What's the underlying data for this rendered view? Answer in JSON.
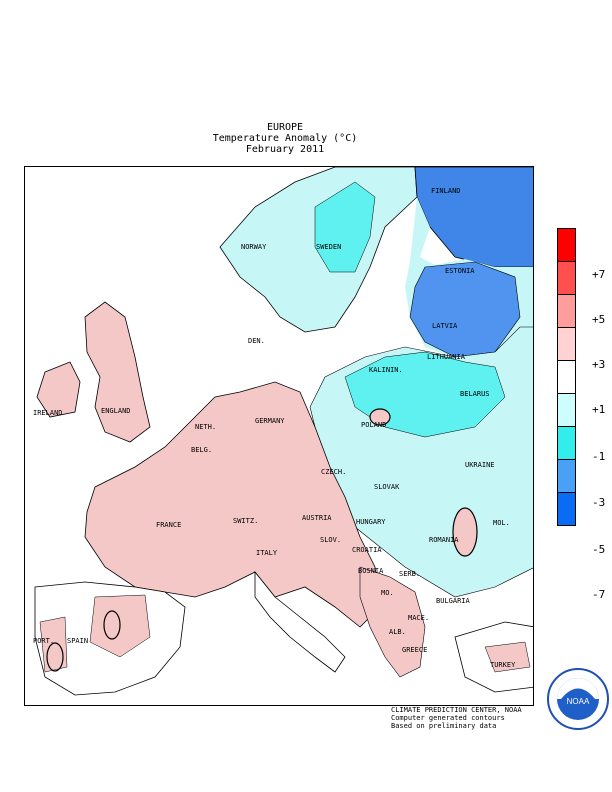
{
  "header": {
    "region": "EUROPE",
    "variable": "Temperature Anomaly (°C)",
    "period": "February 2011"
  },
  "map_labels": [
    "FINLAND",
    "NORWAY",
    "SWEDEN",
    "ESTONIA",
    "LATVIA",
    "DEN.",
    "LITHUANIA",
    "KALININ.",
    "BELARUS",
    "IRELAND",
    "ENGLAND",
    "NETH.",
    "GERMANY",
    "POLAND",
    "BELG.",
    "CZECH.",
    "SLOVAK",
    "UKRAINE",
    "FRANCE",
    "SWITZ.",
    "AUSTRIA",
    "HUNGARY",
    "MOL.",
    "ROMANIA",
    "SLOV.",
    "CROATIA",
    "ITALY",
    "BOSNIA",
    "SERB.",
    "MO.",
    "BULGARIA",
    "MACE.",
    "ALB.",
    "PORT.",
    "SPAIN",
    "GREECE",
    "TURKEY"
  ],
  "legend": {
    "colors": [
      "#ff0000",
      "#ff5050",
      "#ff9d9d",
      "#ffd3d3",
      "#ffffff",
      "#cdfdfd",
      "#33ecec",
      "#4aa0f5",
      "#0a6cf5"
    ],
    "ticks": [
      "+7",
      "+5",
      "+3",
      "+1",
      "-1",
      "-3",
      "-5",
      "-7"
    ]
  },
  "colors": {
    "warm_shade": "#f5c8c8",
    "cool_light": "#c6f6f6",
    "cool_mid": "#5ff0f0",
    "cool_dark": "#5094f0",
    "cool_deep": "#3f86e8"
  },
  "credits": [
    "CLIMATE PREDICTION CENTER, NOAA",
    "Computer generated contours",
    "Based on preliminary data"
  ],
  "logo": {
    "text": "NOAA"
  }
}
